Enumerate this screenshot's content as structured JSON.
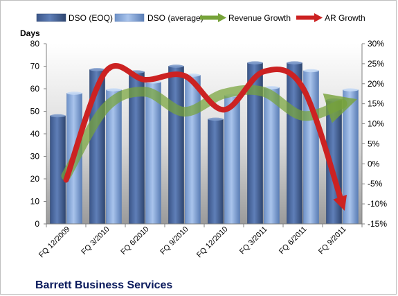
{
  "chart_data": {
    "type": "bar",
    "title": "",
    "company": "Barrett Business Services",
    "categories": [
      "FQ 12/2009",
      "FQ 3/2010",
      "FQ 6/2010",
      "FQ 9/2010",
      "FQ 12/2010",
      "FQ 3/2011",
      "FQ 6/2011",
      "FQ 9/2011"
    ],
    "series": [
      {
        "name": "DSO (EOQ)",
        "type": "bar",
        "axis": "left",
        "color": "#4a6aa0",
        "values": [
          48,
          68.5,
          67.5,
          70,
          46.5,
          71.5,
          71.5,
          55
        ]
      },
      {
        "name": "DSO (average)",
        "type": "bar",
        "axis": "left",
        "color": "#8eaee0",
        "values": [
          58,
          59.5,
          63,
          66,
          57,
          60.5,
          68,
          59.5
        ]
      },
      {
        "name": "Revenue Growth",
        "type": "line",
        "axis": "right",
        "color": "#77a33a",
        "values": [
          -3,
          14,
          18,
          13,
          17.5,
          18,
          12,
          15
        ]
      },
      {
        "name": "AR Growth",
        "type": "line",
        "axis": "right",
        "color": "#cc2222",
        "values": [
          -4,
          23,
          21,
          22,
          13.5,
          23,
          19,
          -10
        ]
      }
    ],
    "ylabel": "Days",
    "ylim": [
      0,
      80
    ],
    "yticks": [
      "0",
      "10",
      "20",
      "30",
      "40",
      "50",
      "60",
      "70",
      "80"
    ],
    "y2lim": [
      -15,
      30
    ],
    "y2ticks": [
      "-15%",
      "-10%",
      "-5%",
      "0%",
      "5%",
      "10%",
      "15%",
      "20%",
      "25%",
      "30%"
    ],
    "legend": [
      "DSO (EOQ)",
      "DSO (average)",
      "Revenue Growth",
      "AR Growth"
    ],
    "legend_position": "top",
    "grid": false
  }
}
